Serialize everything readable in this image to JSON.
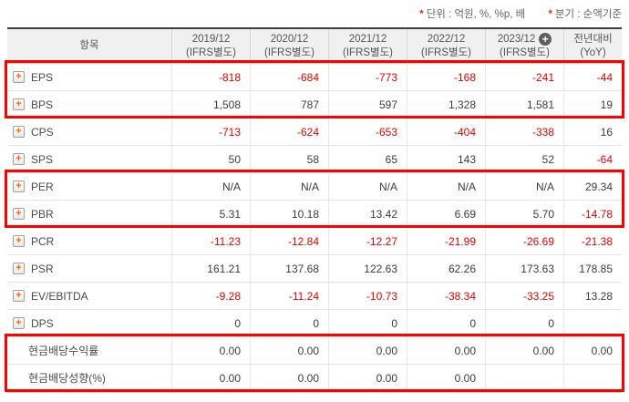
{
  "notes": [
    {
      "mark": "*",
      "text": "단위 : 억원, %, %p, 배"
    },
    {
      "mark": "*",
      "text": "분기 : 순액기준"
    }
  ],
  "icons": {
    "expand_plus": "+",
    "header_add_plus": "+"
  },
  "colors": {
    "negative": "#e60000",
    "highlight_border": "#ff0000",
    "expand_plus_accent": "#ff6600"
  },
  "table": {
    "item_header": "항목",
    "columns": [
      {
        "label": "2019/12",
        "sub": "(IFRS별도)",
        "has_icon": false
      },
      {
        "label": "2020/12",
        "sub": "(IFRS별도)",
        "has_icon": false
      },
      {
        "label": "2021/12",
        "sub": "(IFRS별도)",
        "has_icon": false
      },
      {
        "label": "2022/12",
        "sub": "(IFRS별도)",
        "has_icon": false
      },
      {
        "label": "2023/12",
        "sub": "(IFRS별도)",
        "has_icon": true
      },
      {
        "label": "전년대비",
        "sub": "(YoY)",
        "has_icon": false
      }
    ],
    "rows": [
      {
        "label": "EPS",
        "expandable": true,
        "values": [
          "-818",
          "-684",
          "-773",
          "-168",
          "-241",
          "-44"
        ]
      },
      {
        "label": "BPS",
        "expandable": true,
        "values": [
          "1,508",
          "787",
          "597",
          "1,328",
          "1,581",
          "19"
        ]
      },
      {
        "label": "CPS",
        "expandable": true,
        "values": [
          "-713",
          "-624",
          "-653",
          "-404",
          "-338",
          "16"
        ]
      },
      {
        "label": "SPS",
        "expandable": true,
        "values": [
          "50",
          "58",
          "65",
          "143",
          "52",
          "-64"
        ]
      },
      {
        "label": "PER",
        "expandable": true,
        "values": [
          "N/A",
          "N/A",
          "N/A",
          "N/A",
          "N/A",
          "29.34"
        ]
      },
      {
        "label": "PBR",
        "expandable": true,
        "values": [
          "5.31",
          "10.18",
          "13.42",
          "6.69",
          "5.70",
          "-14.78"
        ]
      },
      {
        "label": "PCR",
        "expandable": true,
        "values": [
          "-11.23",
          "-12.84",
          "-12.27",
          "-21.99",
          "-26.69",
          "-21.38"
        ]
      },
      {
        "label": "PSR",
        "expandable": true,
        "values": [
          "161.21",
          "137.68",
          "122.63",
          "62.26",
          "173.63",
          "178.85"
        ]
      },
      {
        "label": "EV/EBITDA",
        "expandable": true,
        "values": [
          "-9.28",
          "-11.24",
          "-10.73",
          "-38.34",
          "-33.25",
          "13.28"
        ]
      },
      {
        "label": "DPS",
        "expandable": true,
        "values": [
          "0",
          "0",
          "0",
          "0",
          "0",
          ""
        ]
      },
      {
        "label": "현금배당수익률",
        "expandable": false,
        "values": [
          "0.00",
          "0.00",
          "0.00",
          "0.00",
          "0.00",
          "0.00"
        ]
      },
      {
        "label": "현금배당성향(%)",
        "expandable": false,
        "values": [
          "0.00",
          "0.00",
          "0.00",
          "0.00",
          "",
          ""
        ]
      }
    ],
    "highlight_row_groups": [
      [
        0,
        1
      ],
      [
        4,
        5
      ],
      [
        10,
        11
      ]
    ]
  }
}
